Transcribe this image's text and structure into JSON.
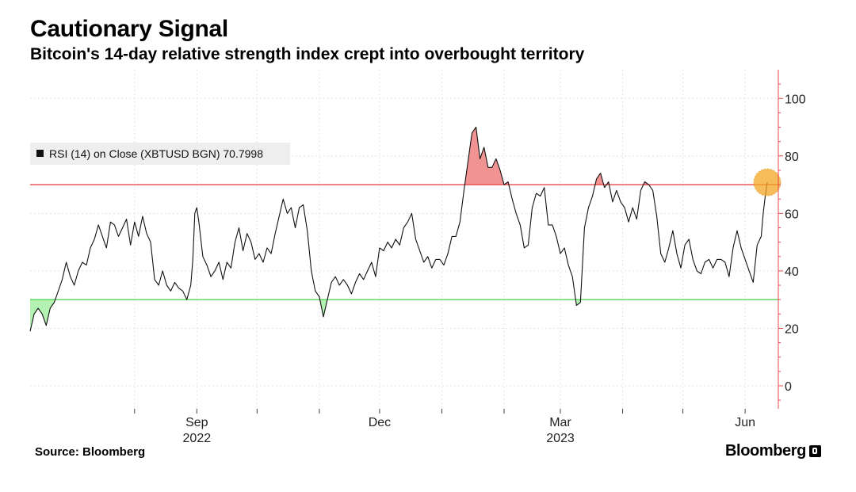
{
  "header": {
    "title": "Cautionary Signal",
    "subtitle": "Bitcoin's 14-day relative strength index crept into overbought territory"
  },
  "footer": {
    "source": "Source: Bloomberg",
    "brand": "Bloomberg"
  },
  "colors": {
    "line": "#111111",
    "overbought_line": "#e8474c",
    "overbought_fill": "#f08080",
    "oversold_line": "#55d455",
    "oversold_fill": "#a7f0a7",
    "grid": "#e3e3e3",
    "axis": "#e8474c",
    "marker": "#f5a623"
  },
  "chart_data": {
    "type": "line",
    "title": "Cautionary Signal",
    "subtitle": "Bitcoin's 14-day relative strength index crept into overbought territory",
    "legend": "RSI (14)  on Close (XBTUSD BGN) 70.7998",
    "legend_position": "top-left",
    "ylim": [
      -8,
      110
    ],
    "yticks": [
      0,
      20,
      40,
      60,
      80,
      100
    ],
    "y_axis_side": "right",
    "grid": true,
    "x_range": [
      "2022-06-10",
      "2023-06-12"
    ],
    "x_ticks": [
      {
        "date": "2022-08-01",
        "label": ""
      },
      {
        "date": "2022-09-01",
        "label": "Sep"
      },
      {
        "date": "2022-10-01",
        "label": ""
      },
      {
        "date": "2022-11-01",
        "label": ""
      },
      {
        "date": "2022-12-01",
        "label": "Dec"
      },
      {
        "date": "2023-01-01",
        "label": ""
      },
      {
        "date": "2023-02-01",
        "label": ""
      },
      {
        "date": "2023-03-01",
        "label": "Mar"
      },
      {
        "date": "2023-04-01",
        "label": ""
      },
      {
        "date": "2023-05-01",
        "label": ""
      },
      {
        "date": "2023-06-01",
        "label": "Jun"
      }
    ],
    "years": [
      {
        "date": "2022-09-01",
        "label": "2022"
      },
      {
        "date": "2023-03-01",
        "label": "2023"
      }
    ],
    "overbought": 70,
    "oversold": 30,
    "last_value": 70.7998,
    "series": [
      {
        "name": "RSI (14)  on Close (XBTUSD BGN)",
        "points": [
          [
            "2022-06-10",
            19
          ],
          [
            "2022-06-12",
            25
          ],
          [
            "2022-06-14",
            27
          ],
          [
            "2022-06-16",
            25
          ],
          [
            "2022-06-18",
            21
          ],
          [
            "2022-06-20",
            27
          ],
          [
            "2022-06-22",
            29
          ],
          [
            "2022-06-24",
            33
          ],
          [
            "2022-06-26",
            37
          ],
          [
            "2022-06-28",
            43
          ],
          [
            "2022-06-30",
            38
          ],
          [
            "2022-07-02",
            35
          ],
          [
            "2022-07-04",
            40
          ],
          [
            "2022-07-06",
            43
          ],
          [
            "2022-07-08",
            42
          ],
          [
            "2022-07-10",
            48
          ],
          [
            "2022-07-12",
            51
          ],
          [
            "2022-07-14",
            56
          ],
          [
            "2022-07-16",
            52
          ],
          [
            "2022-07-18",
            48
          ],
          [
            "2022-07-20",
            57
          ],
          [
            "2022-07-22",
            56
          ],
          [
            "2022-07-24",
            52
          ],
          [
            "2022-07-26",
            55
          ],
          [
            "2022-07-28",
            58
          ],
          [
            "2022-07-30",
            49
          ],
          [
            "2022-08-01",
            57
          ],
          [
            "2022-08-03",
            52
          ],
          [
            "2022-08-05",
            59
          ],
          [
            "2022-08-07",
            53
          ],
          [
            "2022-08-09",
            50
          ],
          [
            "2022-08-11",
            37
          ],
          [
            "2022-08-13",
            35
          ],
          [
            "2022-08-15",
            40
          ],
          [
            "2022-08-17",
            35
          ],
          [
            "2022-08-19",
            33
          ],
          [
            "2022-08-21",
            36
          ],
          [
            "2022-08-23",
            34
          ],
          [
            "2022-08-25",
            33
          ],
          [
            "2022-08-27",
            30
          ],
          [
            "2022-08-29",
            35
          ],
          [
            "2022-08-30",
            44
          ],
          [
            "2022-08-31",
            60
          ],
          [
            "2022-09-01",
            62
          ],
          [
            "2022-09-02",
            57
          ],
          [
            "2022-09-04",
            45
          ],
          [
            "2022-09-06",
            42
          ],
          [
            "2022-09-08",
            38
          ],
          [
            "2022-09-10",
            40
          ],
          [
            "2022-09-12",
            43
          ],
          [
            "2022-09-14",
            37
          ],
          [
            "2022-09-16",
            43
          ],
          [
            "2022-09-18",
            41
          ],
          [
            "2022-09-20",
            50
          ],
          [
            "2022-09-22",
            55
          ],
          [
            "2022-09-24",
            47
          ],
          [
            "2022-09-26",
            53
          ],
          [
            "2022-09-28",
            50
          ],
          [
            "2022-09-30",
            44
          ],
          [
            "2022-10-02",
            46
          ],
          [
            "2022-10-04",
            43
          ],
          [
            "2022-10-06",
            48
          ],
          [
            "2022-10-08",
            46
          ],
          [
            "2022-10-10",
            53
          ],
          [
            "2022-10-12",
            59
          ],
          [
            "2022-10-14",
            65
          ],
          [
            "2022-10-16",
            60
          ],
          [
            "2022-10-18",
            62
          ],
          [
            "2022-10-20",
            55
          ],
          [
            "2022-10-22",
            62
          ],
          [
            "2022-10-24",
            63
          ],
          [
            "2022-10-26",
            54
          ],
          [
            "2022-10-28",
            40
          ],
          [
            "2022-10-30",
            33
          ],
          [
            "2022-11-01",
            31
          ],
          [
            "2022-11-03",
            24
          ],
          [
            "2022-11-05",
            30
          ],
          [
            "2022-11-07",
            36
          ],
          [
            "2022-11-09",
            38
          ],
          [
            "2022-11-11",
            35
          ],
          [
            "2022-11-13",
            37
          ],
          [
            "2022-11-15",
            35
          ],
          [
            "2022-11-17",
            32
          ],
          [
            "2022-11-19",
            36
          ],
          [
            "2022-11-21",
            39
          ],
          [
            "2022-11-23",
            37
          ],
          [
            "2022-11-25",
            40
          ],
          [
            "2022-11-27",
            43
          ],
          [
            "2022-11-29",
            38
          ],
          [
            "2022-12-01",
            48
          ],
          [
            "2022-12-03",
            47
          ],
          [
            "2022-12-05",
            50
          ],
          [
            "2022-12-07",
            48
          ],
          [
            "2022-12-09",
            51
          ],
          [
            "2022-12-11",
            49
          ],
          [
            "2022-12-13",
            55
          ],
          [
            "2022-12-15",
            57
          ],
          [
            "2022-12-17",
            60
          ],
          [
            "2022-12-19",
            51
          ],
          [
            "2022-12-21",
            47
          ],
          [
            "2022-12-23",
            43
          ],
          [
            "2022-12-25",
            45
          ],
          [
            "2022-12-27",
            41
          ],
          [
            "2022-12-29",
            44
          ],
          [
            "2022-12-31",
            44
          ],
          [
            "2023-01-02",
            42
          ],
          [
            "2023-01-04",
            46
          ],
          [
            "2023-01-06",
            52
          ],
          [
            "2023-01-08",
            52
          ],
          [
            "2023-01-10",
            57
          ],
          [
            "2023-01-12",
            68
          ],
          [
            "2023-01-14",
            78
          ],
          [
            "2023-01-16",
            88
          ],
          [
            "2023-01-18",
            90
          ],
          [
            "2023-01-20",
            79
          ],
          [
            "2023-01-22",
            83
          ],
          [
            "2023-01-24",
            76
          ],
          [
            "2023-01-26",
            76
          ],
          [
            "2023-01-28",
            79
          ],
          [
            "2023-01-30",
            75
          ],
          [
            "2023-02-01",
            70
          ],
          [
            "2023-02-03",
            71
          ],
          [
            "2023-02-05",
            65
          ],
          [
            "2023-02-07",
            60
          ],
          [
            "2023-02-09",
            56
          ],
          [
            "2023-02-11",
            48
          ],
          [
            "2023-02-13",
            49
          ],
          [
            "2023-02-15",
            62
          ],
          [
            "2023-02-17",
            67
          ],
          [
            "2023-02-19",
            66
          ],
          [
            "2023-02-21",
            69
          ],
          [
            "2023-02-23",
            56
          ],
          [
            "2023-02-25",
            56
          ],
          [
            "2023-02-27",
            52
          ],
          [
            "2023-03-01",
            46
          ],
          [
            "2023-03-03",
            48
          ],
          [
            "2023-03-05",
            42
          ],
          [
            "2023-03-07",
            38
          ],
          [
            "2023-03-09",
            28
          ],
          [
            "2023-03-11",
            29
          ],
          [
            "2023-03-13",
            55
          ],
          [
            "2023-03-15",
            62
          ],
          [
            "2023-03-17",
            66
          ],
          [
            "2023-03-19",
            72
          ],
          [
            "2023-03-21",
            74
          ],
          [
            "2023-03-23",
            69
          ],
          [
            "2023-03-25",
            71
          ],
          [
            "2023-03-27",
            64
          ],
          [
            "2023-03-29",
            68
          ],
          [
            "2023-03-31",
            64
          ],
          [
            "2023-04-02",
            62
          ],
          [
            "2023-04-04",
            57
          ],
          [
            "2023-04-06",
            62
          ],
          [
            "2023-04-08",
            58
          ],
          [
            "2023-04-10",
            68
          ],
          [
            "2023-04-12",
            71
          ],
          [
            "2023-04-14",
            70
          ],
          [
            "2023-04-16",
            68
          ],
          [
            "2023-04-18",
            59
          ],
          [
            "2023-04-20",
            46
          ],
          [
            "2023-04-22",
            43
          ],
          [
            "2023-04-24",
            48
          ],
          [
            "2023-04-26",
            54
          ],
          [
            "2023-04-28",
            46
          ],
          [
            "2023-04-30",
            41
          ],
          [
            "2023-05-02",
            49
          ],
          [
            "2023-05-04",
            51
          ],
          [
            "2023-05-06",
            44
          ],
          [
            "2023-05-08",
            40
          ],
          [
            "2023-05-10",
            39
          ],
          [
            "2023-05-12",
            43
          ],
          [
            "2023-05-14",
            44
          ],
          [
            "2023-05-16",
            41
          ],
          [
            "2023-05-18",
            44
          ],
          [
            "2023-05-20",
            44
          ],
          [
            "2023-05-22",
            43
          ],
          [
            "2023-05-24",
            38
          ],
          [
            "2023-05-26",
            48
          ],
          [
            "2023-05-28",
            54
          ],
          [
            "2023-05-30",
            48
          ],
          [
            "2023-06-01",
            44
          ],
          [
            "2023-06-03",
            40
          ],
          [
            "2023-06-05",
            36
          ],
          [
            "2023-06-07",
            49
          ],
          [
            "2023-06-09",
            52
          ],
          [
            "2023-06-10",
            60
          ],
          [
            "2023-06-11",
            66
          ],
          [
            "2023-06-12",
            70.8
          ]
        ]
      }
    ]
  }
}
